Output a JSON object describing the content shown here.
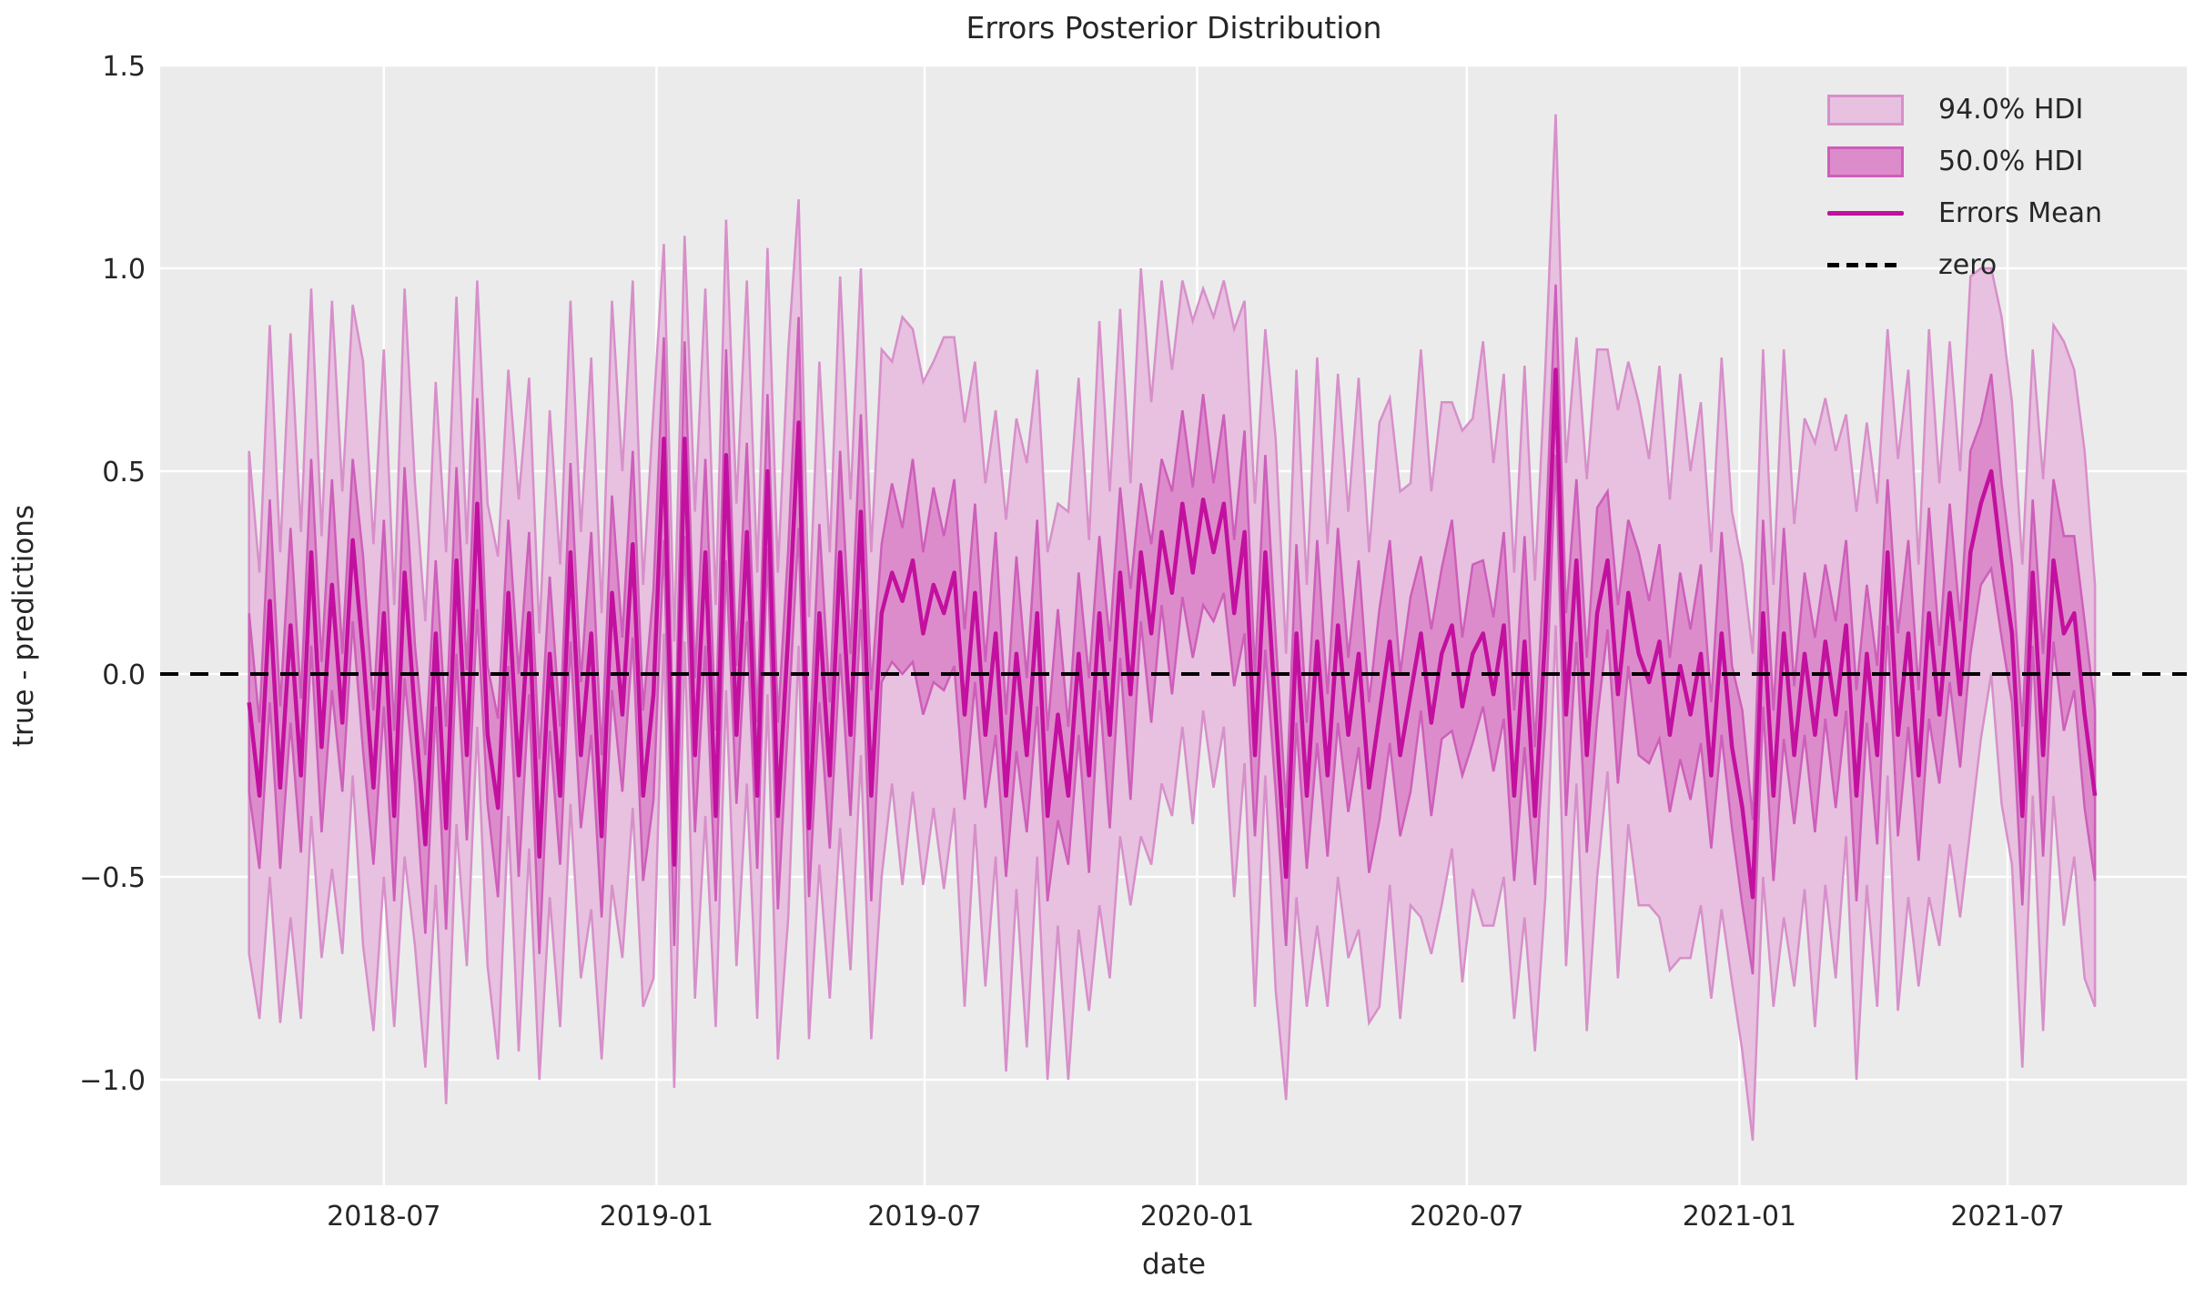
{
  "figure": {
    "title": "Errors Posterior Distribution",
    "xlabel": "date",
    "ylabel": "true - predictions",
    "background_color": "#ffffff",
    "axes_background_color": "#ebebeb",
    "grid_color": "#ffffff",
    "text_color": "#262626"
  },
  "legend": {
    "items": [
      {
        "label": "94.0% HDI",
        "type": "patch",
        "fill": "#e7c1df",
        "edge": "#d78fca"
      },
      {
        "label": "50.0% HDI",
        "type": "patch",
        "fill": "#dd8ccb",
        "edge": "#cd5eba"
      },
      {
        "label": "Errors Mean",
        "type": "line",
        "color": "#c2109f"
      },
      {
        "label": "zero",
        "type": "dashed-line",
        "color": "#000000"
      }
    ]
  },
  "chart_data": {
    "type": "line",
    "title": "Errors Posterior Distribution",
    "xlabel": "date",
    "ylabel": "true - predictions",
    "grid": true,
    "legend_position": "upper right",
    "x_start_date": "2018-04-01",
    "x_step_days": 7,
    "n_points": 179,
    "x_tick_labels": [
      "2018-07",
      "2019-01",
      "2019-07",
      "2020-01",
      "2020-07",
      "2021-01",
      "2021-07"
    ],
    "y_tick_values": [
      1.5,
      1.0,
      0.5,
      0.0,
      -0.5,
      -1.0
    ],
    "y_tick_labels": [
      "1.5",
      "1.0",
      "0.5",
      "0.0",
      "−0.5",
      "−1.0"
    ],
    "ylim": [
      -1.26,
      1.5
    ],
    "xlim_days": [
      -60,
      1308
    ],
    "zero_line_y": 0.0,
    "series": [
      {
        "name": "Errors Mean",
        "key": "mean"
      },
      {
        "name": "50.0% HDI",
        "key": "hdi50_halfwidth"
      },
      {
        "name": "94.0% HDI",
        "key": "hdi94_halfwidth"
      }
    ],
    "mean": [
      -0.07,
      -0.3,
      0.18,
      -0.28,
      0.12,
      -0.25,
      0.3,
      -0.18,
      0.22,
      -0.12,
      0.33,
      0.05,
      -0.28,
      0.15,
      -0.35,
      0.25,
      -0.1,
      -0.42,
      0.1,
      -0.38,
      0.28,
      -0.2,
      0.42,
      -0.15,
      -0.33,
      0.2,
      -0.25,
      0.15,
      -0.45,
      0.05,
      -0.3,
      0.3,
      -0.2,
      0.1,
      -0.4,
      0.2,
      -0.1,
      0.32,
      -0.3,
      -0.05,
      0.58,
      -0.47,
      0.58,
      -0.2,
      0.3,
      -0.35,
      0.54,
      -0.15,
      0.35,
      -0.3,
      0.5,
      -0.35,
      0.1,
      0.62,
      -0.38,
      0.15,
      -0.25,
      0.3,
      -0.15,
      0.4,
      -0.3,
      0.15,
      0.25,
      0.18,
      0.28,
      0.1,
      0.22,
      0.15,
      0.25,
      -0.1,
      0.2,
      -0.15,
      0.1,
      -0.3,
      0.05,
      -0.2,
      0.15,
      -0.35,
      -0.1,
      -0.3,
      0.05,
      -0.25,
      0.15,
      -0.15,
      0.25,
      -0.05,
      0.3,
      0.1,
      0.35,
      0.2,
      0.42,
      0.25,
      0.43,
      0.3,
      0.42,
      0.15,
      0.35,
      -0.2,
      0.3,
      -0.1,
      -0.5,
      0.1,
      -0.3,
      0.08,
      -0.25,
      0.12,
      -0.15,
      0.05,
      -0.28,
      -0.1,
      0.08,
      -0.2,
      -0.05,
      0.1,
      -0.12,
      0.05,
      0.12,
      -0.08,
      0.05,
      0.1,
      -0.05,
      0.12,
      -0.3,
      0.08,
      -0.35,
      0.1,
      0.75,
      -0.1,
      0.28,
      -0.2,
      0.15,
      0.28,
      -0.05,
      0.2,
      0.05,
      -0.02,
      0.08,
      -0.15,
      0.02,
      -0.1,
      0.05,
      -0.25,
      0.1,
      -0.18,
      -0.33,
      -0.55,
      0.15,
      -0.3,
      0.1,
      -0.2,
      0.05,
      -0.15,
      0.08,
      -0.1,
      0.12,
      -0.3,
      0.05,
      -0.2,
      0.3,
      -0.15,
      0.1,
      -0.25,
      0.15,
      -0.1,
      0.2,
      -0.05,
      0.3,
      0.42,
      0.5,
      0.28,
      0.1,
      -0.35,
      0.25,
      -0.2,
      0.28,
      0.1,
      0.15,
      -0.1,
      -0.3
    ],
    "hdi94_halfwidth": [
      0.62,
      0.55,
      0.68,
      0.58,
      0.72,
      0.6,
      0.65,
      0.52,
      0.7,
      0.57,
      0.58,
      0.72,
      0.6,
      0.65,
      0.52,
      0.7,
      0.57,
      0.55,
      0.62,
      0.68,
      0.65,
      0.52,
      0.55,
      0.57,
      0.62,
      0.55,
      0.68,
      0.58,
      0.55,
      0.6,
      0.57,
      0.62,
      0.55,
      0.68,
      0.55,
      0.72,
      0.6,
      0.65,
      0.52,
      0.7,
      0.48,
      0.55,
      0.5,
      0.6,
      0.65,
      0.52,
      0.58,
      0.57,
      0.62,
      0.55,
      0.55,
      0.6,
      0.7,
      0.55,
      0.52,
      0.62,
      0.55,
      0.68,
      0.58,
      0.6,
      0.6,
      0.65,
      0.52,
      0.7,
      0.57,
      0.62,
      0.55,
      0.68,
      0.58,
      0.72,
      0.57,
      0.62,
      0.55,
      0.68,
      0.58,
      0.72,
      0.6,
      0.65,
      0.52,
      0.7,
      0.68,
      0.58,
      0.72,
      0.6,
      0.65,
      0.52,
      0.7,
      0.57,
      0.62,
      0.55,
      0.55,
      0.62,
      0.52,
      0.58,
      0.55,
      0.7,
      0.57,
      0.62,
      0.55,
      0.68,
      0.55,
      0.65,
      0.52,
      0.7,
      0.57,
      0.62,
      0.55,
      0.68,
      0.58,
      0.72,
      0.6,
      0.65,
      0.52,
      0.7,
      0.57,
      0.62,
      0.55,
      0.68,
      0.58,
      0.72,
      0.57,
      0.62,
      0.55,
      0.68,
      0.58,
      0.65,
      0.63,
      0.62,
      0.55,
      0.68,
      0.65,
      0.52,
      0.7,
      0.57,
      0.62,
      0.55,
      0.68,
      0.58,
      0.72,
      0.6,
      0.62,
      0.55,
      0.68,
      0.58,
      0.6,
      0.6,
      0.65,
      0.52,
      0.7,
      0.57,
      0.58,
      0.72,
      0.6,
      0.65,
      0.52,
      0.7,
      0.57,
      0.62,
      0.55,
      0.68,
      0.65,
      0.52,
      0.7,
      0.57,
      0.62,
      0.55,
      0.68,
      0.58,
      0.5,
      0.6,
      0.57,
      0.62,
      0.55,
      0.68,
      0.58,
      0.72,
      0.6,
      0.65,
      0.52
    ],
    "hdi50_halfwidth": [
      0.22,
      0.18,
      0.25,
      0.2,
      0.24,
      0.19,
      0.23,
      0.21,
      0.26,
      0.17,
      0.2,
      0.24,
      0.19,
      0.23,
      0.21,
      0.26,
      0.17,
      0.22,
      0.18,
      0.25,
      0.23,
      0.21,
      0.26,
      0.17,
      0.22,
      0.18,
      0.25,
      0.2,
      0.24,
      0.19,
      0.17,
      0.22,
      0.18,
      0.25,
      0.2,
      0.24,
      0.19,
      0.23,
      0.21,
      0.26,
      0.25,
      0.2,
      0.24,
      0.19,
      0.23,
      0.21,
      0.26,
      0.17,
      0.22,
      0.18,
      0.19,
      0.23,
      0.21,
      0.26,
      0.17,
      0.22,
      0.18,
      0.25,
      0.2,
      0.24,
      0.26,
      0.17,
      0.22,
      0.18,
      0.25,
      0.2,
      0.24,
      0.19,
      0.23,
      0.21,
      0.22,
      0.18,
      0.25,
      0.2,
      0.24,
      0.19,
      0.23,
      0.21,
      0.26,
      0.17,
      0.2,
      0.24,
      0.19,
      0.23,
      0.21,
      0.26,
      0.17,
      0.22,
      0.18,
      0.25,
      0.23,
      0.21,
      0.26,
      0.17,
      0.22,
      0.18,
      0.25,
      0.2,
      0.24,
      0.19,
      0.17,
      0.22,
      0.18,
      0.25,
      0.2,
      0.24,
      0.19,
      0.23,
      0.21,
      0.26,
      0.25,
      0.2,
      0.24,
      0.19,
      0.23,
      0.21,
      0.26,
      0.17,
      0.22,
      0.18,
      0.19,
      0.23,
      0.21,
      0.26,
      0.17,
      0.22,
      0.21,
      0.25,
      0.2,
      0.24,
      0.26,
      0.17,
      0.22,
      0.18,
      0.25,
      0.2,
      0.24,
      0.19,
      0.23,
      0.21,
      0.22,
      0.18,
      0.25,
      0.2,
      0.24,
      0.19,
      0.23,
      0.21,
      0.26,
      0.17,
      0.2,
      0.24,
      0.19,
      0.23,
      0.21,
      0.26,
      0.17,
      0.22,
      0.18,
      0.25,
      0.23,
      0.21,
      0.26,
      0.17,
      0.22,
      0.18,
      0.25,
      0.2,
      0.24,
      0.19,
      0.17,
      0.22,
      0.18,
      0.25,
      0.2,
      0.24,
      0.19,
      0.23,
      0.21
    ]
  }
}
